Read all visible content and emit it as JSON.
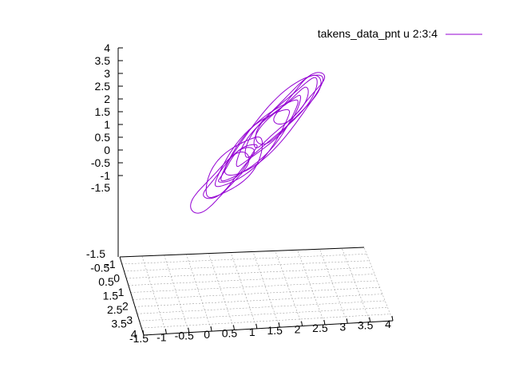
{
  "chart_data": {
    "type": "line",
    "plot_kind": "3d-splot",
    "title": "",
    "series": [
      {
        "name": "takens_data_pnt u 2:3:4",
        "color": "#9400d3"
      }
    ],
    "legend": {
      "placement": "top-right",
      "label": "takens_data_pnt u 2:3:4"
    },
    "axes": {
      "x": {
        "range": [
          -1.5,
          4
        ],
        "ticks": [
          "-1.5",
          "-1",
          "-0.5",
          "0",
          "0.5",
          "1",
          "1.5",
          "2",
          "2.5",
          "3",
          "3.5",
          "4"
        ]
      },
      "y": {
        "range": [
          -1.5,
          4
        ],
        "ticks": [
          "-1.5",
          "-1",
          "-0.5",
          "0",
          "0.5",
          "1",
          "1.5",
          "2",
          "2.5",
          "3",
          "3.5",
          "4"
        ]
      },
      "z": {
        "range": [
          -1.5,
          4
        ],
        "ticks": [
          "-1.5",
          "-1",
          "-0.5",
          "0",
          "0.5",
          "1",
          "1.5",
          "2",
          "2.5",
          "3",
          "3.5",
          "4"
        ]
      }
    },
    "base_y_tick_labels": [
      "-1.5",
      "-0.5",
      "0.5",
      "1.5",
      "2.5",
      "3.5",
      "-1",
      "0",
      "1",
      "2",
      "3",
      "4"
    ],
    "grid": true
  }
}
